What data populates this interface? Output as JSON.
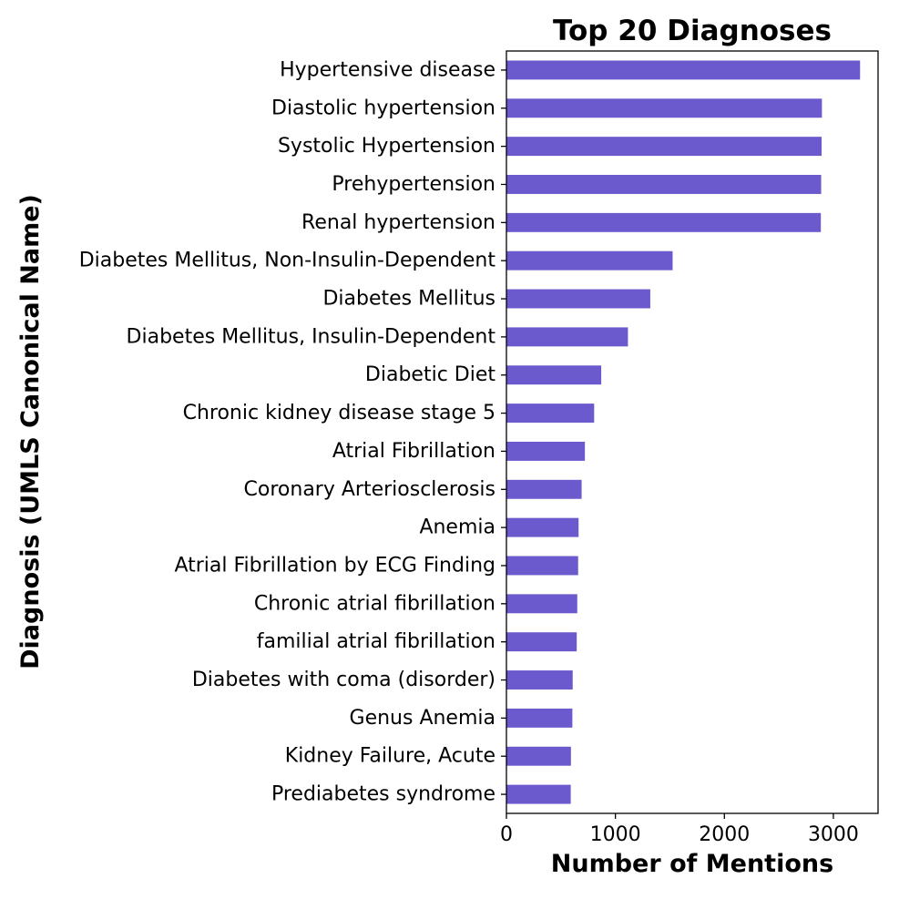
{
  "chart_data": {
    "type": "bar",
    "orientation": "horizontal",
    "title": "Top 20 Diagnoses",
    "xlabel": "Number of Mentions",
    "ylabel": "Diagnosis (UMLS Canonical Name)",
    "categories": [
      "Hypertensive disease",
      "Diastolic hypertension",
      "Systolic Hypertension",
      "Prehypertension",
      "Renal hypertension",
      "Diabetes Mellitus, Non-Insulin-Dependent",
      "Diabetes Mellitus",
      "Diabetes Mellitus, Insulin-Dependent",
      "Diabetic Diet",
      "Chronic kidney disease stage 5",
      "Atrial Fibrillation",
      "Coronary Arteriosclerosis",
      "Anemia",
      "Atrial Fibrillation by ECG Finding",
      "Chronic atrial fibrillation",
      "familial atrial fibrillation",
      "Diabetes with coma (disorder)",
      "Genus Anemia",
      "Kidney Failure, Acute",
      "Prediabetes syndrome"
    ],
    "values": [
      3245,
      2895,
      2892,
      2888,
      2885,
      1525,
      1320,
      1115,
      870,
      805,
      720,
      690,
      662,
      658,
      650,
      645,
      608,
      605,
      592,
      590
    ],
    "xlim": [
      0,
      3410
    ],
    "xticks": [
      0,
      1000,
      2000,
      3000
    ],
    "bar_color": "#6a5acd",
    "grid": false,
    "legend": "none"
  }
}
